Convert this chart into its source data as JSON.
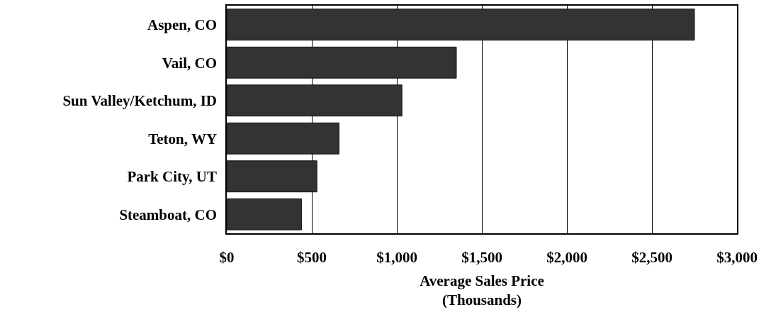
{
  "chart_data": {
    "type": "bar",
    "orientation": "horizontal",
    "categories": [
      "Aspen, CO",
      "Vail, CO",
      "Sun Valley/Ketchum, ID",
      "Teton, WY",
      "Park City, UT",
      "Steamboat, CO"
    ],
    "values": [
      2750,
      1350,
      1030,
      660,
      530,
      440
    ],
    "color": "#333333",
    "xlabel": "Average Sales Price\n(Thousands)",
    "xlim": [
      0,
      3000
    ],
    "xticks": [
      {
        "value": 0,
        "label": "$0"
      },
      {
        "value": 500,
        "label": "$500"
      },
      {
        "value": 1000,
        "label": "$1,000"
      },
      {
        "value": 1500,
        "label": "$1,500"
      },
      {
        "value": 2000,
        "label": "$2,000"
      },
      {
        "value": 2500,
        "label": "$2,500"
      },
      {
        "value": 3000,
        "label": "$3,000"
      }
    ],
    "grid": "x"
  }
}
